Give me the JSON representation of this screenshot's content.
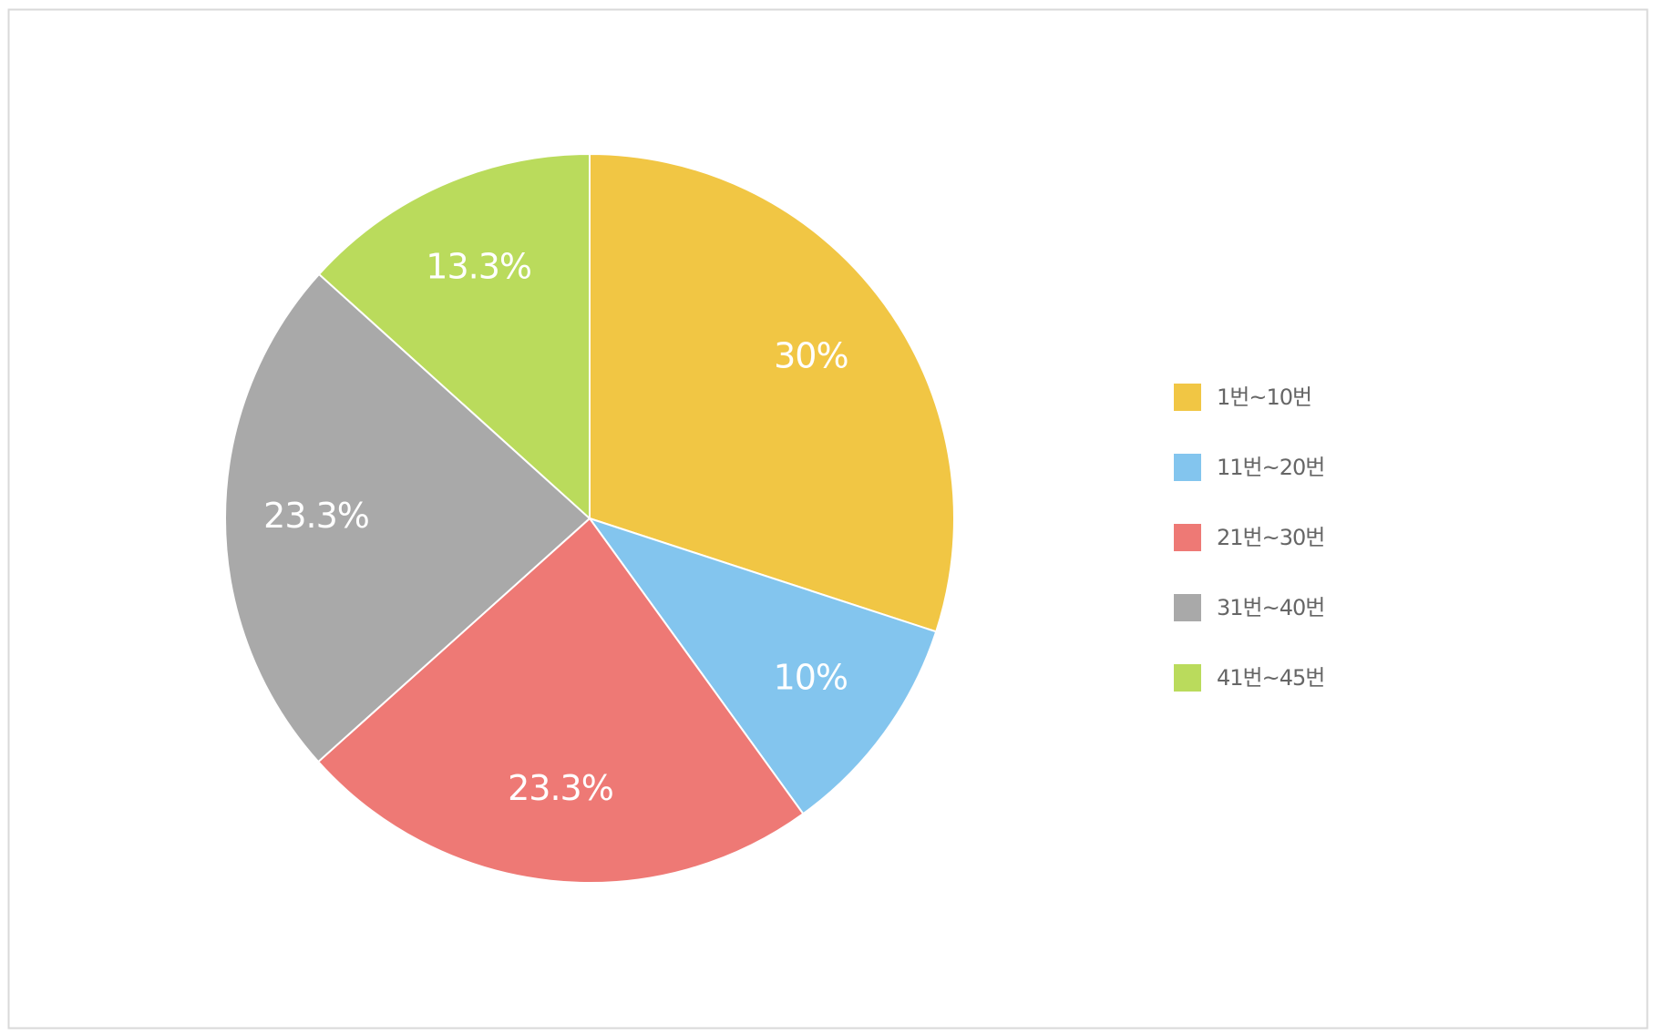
{
  "chart_data": {
    "type": "pie",
    "categories": [
      "1번~10번",
      "11번~20번",
      "21번~30번",
      "31번~40번",
      "41번~45번"
    ],
    "values": [
      30,
      10,
      23.3,
      23.3,
      13.3
    ],
    "value_labels": [
      "30%",
      "10%",
      "23.3%",
      "23.3%",
      "13.3%"
    ],
    "colors": [
      "#f1c644",
      "#83c5ee",
      "#ee7975",
      "#a9a9a9",
      "#badb5c"
    ],
    "legend": "right"
  }
}
